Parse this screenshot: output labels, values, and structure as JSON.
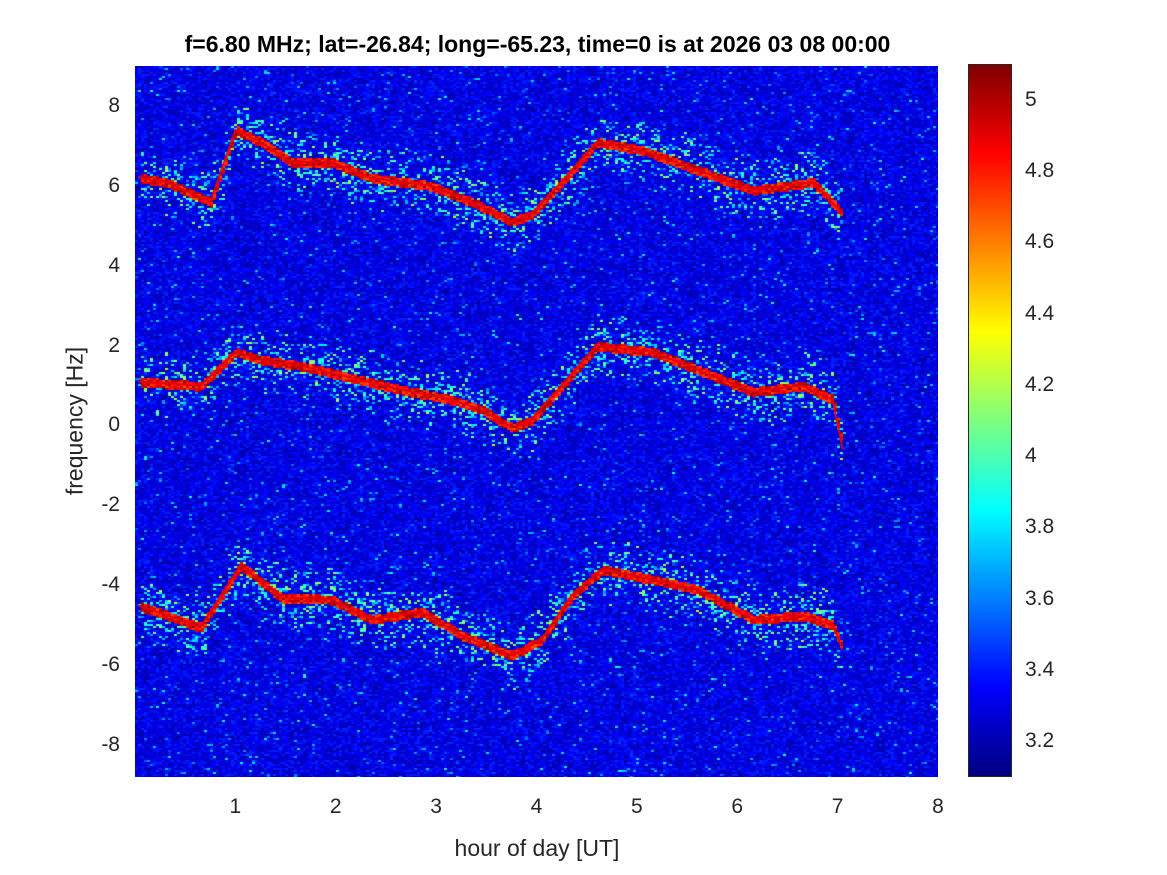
{
  "chart_data": {
    "type": "heatmap",
    "title": "f=6.80 MHz;  lat=-26.84; long=-65.23, time=0 is at 2026 03 08 00:00",
    "xlabel": "hour of day [UT]",
    "ylabel": "frequency [Hz]",
    "xlim": [
      0,
      8
    ],
    "ylim": [
      -8.8,
      9
    ],
    "xticks": [
      "1",
      "2",
      "3",
      "4",
      "5",
      "6",
      "7",
      "8"
    ],
    "yticks": [
      "8",
      "6",
      "4",
      "2",
      "0",
      "-2",
      "-4",
      "-6",
      "-8"
    ],
    "colormap": "jet",
    "clim": [
      3.1,
      5.1
    ],
    "colorbar_ticks": [
      "5",
      "4.8",
      "4.6",
      "4.4",
      "4.2",
      "4",
      "3.8",
      "3.6",
      "3.4",
      "3.2"
    ],
    "background_level": 3.3,
    "ridge_series": [
      {
        "name": "upper-doppler-trace",
        "level": 4.9,
        "points": [
          [
            0.03,
            6.2
          ],
          [
            0.3,
            6.1
          ],
          [
            0.75,
            5.6
          ],
          [
            1.0,
            7.4
          ],
          [
            1.25,
            7.1
          ],
          [
            1.55,
            6.6
          ],
          [
            1.95,
            6.6
          ],
          [
            2.35,
            6.2
          ],
          [
            2.65,
            6.1
          ],
          [
            2.95,
            6.0
          ],
          [
            3.35,
            5.6
          ],
          [
            3.75,
            5.1
          ],
          [
            3.95,
            5.3
          ],
          [
            4.25,
            6.1
          ],
          [
            4.6,
            7.1
          ],
          [
            5.05,
            6.9
          ],
          [
            5.6,
            6.4
          ],
          [
            6.15,
            5.9
          ],
          [
            6.75,
            6.1
          ],
          [
            7.05,
            5.3
          ]
        ]
      },
      {
        "name": "middle-doppler-trace",
        "level": 4.9,
        "points": [
          [
            0.03,
            1.1
          ],
          [
            0.65,
            1.0
          ],
          [
            1.0,
            1.85
          ],
          [
            1.25,
            1.65
          ],
          [
            1.65,
            1.5
          ],
          [
            2.15,
            1.2
          ],
          [
            2.65,
            0.9
          ],
          [
            3.15,
            0.65
          ],
          [
            3.45,
            0.4
          ],
          [
            3.75,
            -0.05
          ],
          [
            3.95,
            0.15
          ],
          [
            4.25,
            1.0
          ],
          [
            4.6,
            2.0
          ],
          [
            5.15,
            1.85
          ],
          [
            5.6,
            1.4
          ],
          [
            6.15,
            0.85
          ],
          [
            6.65,
            1.0
          ],
          [
            6.95,
            0.65
          ],
          [
            7.05,
            -0.6
          ]
        ]
      },
      {
        "name": "lower-doppler-trace",
        "level": 4.9,
        "points": [
          [
            0.03,
            -4.5
          ],
          [
            0.65,
            -5.05
          ],
          [
            1.05,
            -3.5
          ],
          [
            1.45,
            -4.3
          ],
          [
            1.95,
            -4.35
          ],
          [
            2.35,
            -4.85
          ],
          [
            2.85,
            -4.65
          ],
          [
            3.25,
            -5.25
          ],
          [
            3.75,
            -5.75
          ],
          [
            4.05,
            -5.35
          ],
          [
            4.35,
            -4.25
          ],
          [
            4.65,
            -3.6
          ],
          [
            5.15,
            -3.85
          ],
          [
            5.6,
            -4.1
          ],
          [
            6.15,
            -4.85
          ],
          [
            6.65,
            -4.75
          ],
          [
            6.95,
            -5.0
          ],
          [
            7.05,
            -5.6
          ]
        ]
      }
    ]
  }
}
